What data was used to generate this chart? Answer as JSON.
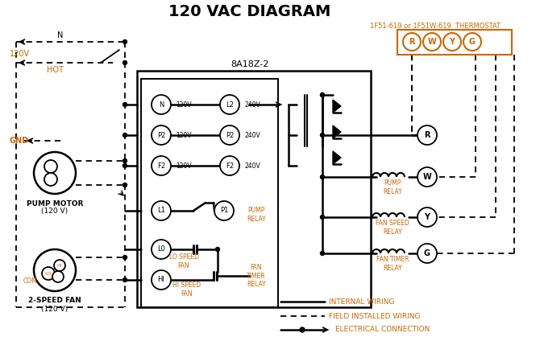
{
  "title": "120 VAC DIAGRAM",
  "title_fontsize": 14,
  "bg_color": "#ffffff",
  "fg_color": "#000000",
  "orange_color": "#cc6600",
  "thermostat_label": "1F51-619 or 1F51W-619  THERMOSTAT",
  "relay_label": "8A18Z-2",
  "terminal_labels": [
    "R",
    "W",
    "Y",
    "G"
  ],
  "pump_motor_label1": "PUMP MOTOR",
  "pump_motor_label2": "(120 V)",
  "fan_label1": "2-SPEED FAN",
  "fan_label2": "(120 V)",
  "pump_relay_label": "PUMP\nRELAY",
  "fan_speed_relay_label": "FAN SPEED\nRELAY",
  "fan_timer_relay_label": "FAN TIMER\nRELAY",
  "lo_speed_label": "LO SPEED\nFAN",
  "hi_speed_label": "HI SPEED\nFAN",
  "fan_timer_relay_bottom": "FAN\nTIMER\nRELAY",
  "gnd_label": "GND",
  "hot_label": "HOT",
  "n_label": "N",
  "v120_label": "120V",
  "com_label": "COM",
  "lo_label": "LO",
  "hi_label": "HI",
  "internal_wiring_label": "INTERNAL WIRING",
  "field_wiring_label": "FIELD INSTALLED WIRING",
  "elec_conn_label": "ELECTRICAL CONNECTION"
}
